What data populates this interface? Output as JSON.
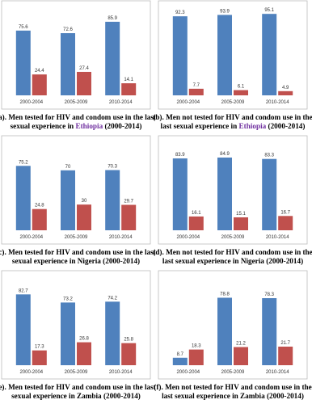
{
  "chart_data": [
    {
      "type": "bar",
      "categories": [
        "2000-2004",
        "2005-2009",
        "2010-2014"
      ],
      "ylim": [
        0,
        100
      ],
      "series": [
        {
          "color": "#4f81bd",
          "values": [
            75.6,
            72.6,
            85.9
          ]
        },
        {
          "color": "#c0504d",
          "values": [
            24.4,
            27.4,
            14.1
          ]
        }
      ],
      "caption": {
        "line1": "(a). Men tested for HIV and condom use in the last",
        "line2_before": "sexual experience in ",
        "country": "Ethiopia",
        "line2_after": " (2000-2014)"
      },
      "country_color": "#7030a0"
    },
    {
      "type": "bar",
      "categories": [
        "2000-2004",
        "2005-2009",
        "2010-2014"
      ],
      "ylim": [
        0,
        100
      ],
      "series": [
        {
          "color": "#4f81bd",
          "values": [
            92.3,
            93.9,
            95.1
          ]
        },
        {
          "color": "#c0504d",
          "values": [
            7.7,
            6.1,
            4.9
          ]
        }
      ],
      "caption": {
        "line1": "(b). Men not tested for HIV and condom use in the",
        "line2_before": "last sexual experience in ",
        "country": "Ethiopia",
        "line2_after": " (2000-2014)"
      },
      "country_color": "#7030a0"
    },
    {
      "type": "bar",
      "categories": [
        "2000-2004",
        "2005-2009",
        "2010-2014"
      ],
      "ylim": [
        0,
        100
      ],
      "series": [
        {
          "color": "#4f81bd",
          "values": [
            75.2,
            70,
            70.3
          ]
        },
        {
          "color": "#c0504d",
          "values": [
            24.8,
            30,
            29.7
          ]
        }
      ],
      "caption": {
        "line1": "(c). Men tested for HIV and condom use in the last",
        "line2_before": "sexual experience in ",
        "country": "Nigeria",
        "line2_after": " (2000-2014)"
      }
    },
    {
      "type": "bar",
      "categories": [
        "2000-2004",
        "2005-2009",
        "2010-2014"
      ],
      "ylim": [
        0,
        100
      ],
      "series": [
        {
          "color": "#4f81bd",
          "values": [
            83.9,
            84.9,
            83.3
          ]
        },
        {
          "color": "#c0504d",
          "values": [
            16.1,
            15.1,
            16.7
          ]
        }
      ],
      "caption": {
        "line1": "(d). Men not tested for HIV and condom use in the",
        "line2_before": "last sexual experience in ",
        "country": "Nigeria",
        "line2_after": " (2000-2014)"
      }
    },
    {
      "type": "bar",
      "categories": [
        "2000-2004",
        "2005-2009",
        "2010-2014"
      ],
      "ylim": [
        0,
        100
      ],
      "series": [
        {
          "color": "#4f81bd",
          "values": [
            82.7,
            73.2,
            74.2
          ]
        },
        {
          "color": "#c0504d",
          "values": [
            17.3,
            26.8,
            25.8
          ]
        }
      ],
      "caption": {
        "line1": "(e). Men tested for HIV and condom use in the last",
        "line2_before": "sexual experience in ",
        "country": "Zambia",
        "line2_after": " (2000-2014)"
      }
    },
    {
      "type": "bar",
      "categories": [
        "2000-2004",
        "2005-2009",
        "2010-2014"
      ],
      "ylim": [
        0,
        100
      ],
      "series": [
        {
          "color": "#4f81bd",
          "values": [
            8.7,
            78.8,
            78.3
          ]
        },
        {
          "color": "#c0504d",
          "values": [
            18.3,
            21.2,
            21.7
          ]
        }
      ],
      "caption": {
        "line1": "(f). Men not tested for HIV and condom use in the",
        "line2_before": "last sexual experience in ",
        "country": "Zambia",
        "line2_after": " (2000-2014)"
      }
    }
  ]
}
